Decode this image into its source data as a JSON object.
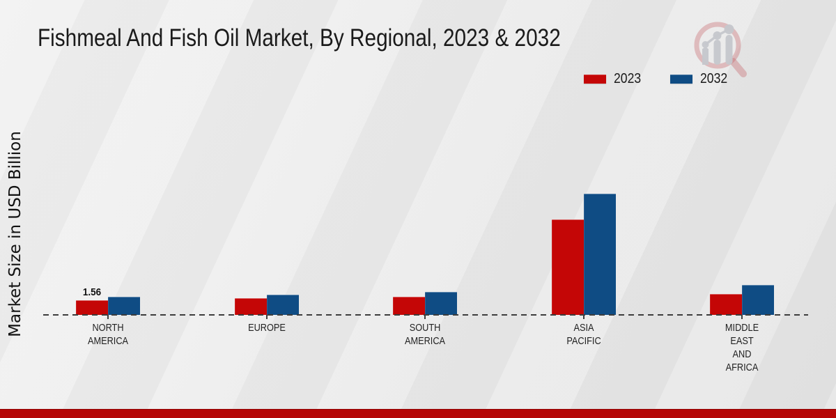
{
  "title": "Fishmeal And Fish Oil Market, By Regional, 2023 & 2032",
  "icons": {
    "logo": "magnifier-bar-chart-logo"
  },
  "colors": {
    "series_2023": "#c40606",
    "series_2032": "#0f4c84",
    "footer_accent": "#b50606",
    "background": "#ebebeb",
    "baseline": "#3c3c3c"
  },
  "legend": {
    "items": [
      {
        "label": "2023",
        "color": "#c40606"
      },
      {
        "label": "2032",
        "color": "#0f4c84"
      }
    ]
  },
  "chart_data": {
    "type": "bar",
    "title": "Fishmeal And Fish Oil Market, By Regional, 2023 & 2032",
    "xlabel": "",
    "ylabel": "Market Size in USD Billion",
    "categories": [
      "NORTH AMERICA",
      "EUROPE",
      "SOUTH AMERICA",
      "ASIA PACIFIC",
      "MIDDLE EAST AND AFRICA"
    ],
    "series": [
      {
        "name": "2023",
        "color": "#c40606",
        "values": [
          1.56,
          1.81,
          1.93,
          10.18,
          2.21
        ]
      },
      {
        "name": "2032",
        "color": "#0f4c84",
        "values": [
          1.93,
          2.18,
          2.43,
          12.9,
          3.17
        ]
      }
    ],
    "annotations": [
      {
        "text": "1.56",
        "category_index": 0,
        "series_index": 0
      }
    ],
    "axis": {
      "y_ticks_visible": false,
      "y_gridlines": false,
      "baseline_style": "dashed"
    },
    "legend_position": "top-right",
    "grid": false
  }
}
